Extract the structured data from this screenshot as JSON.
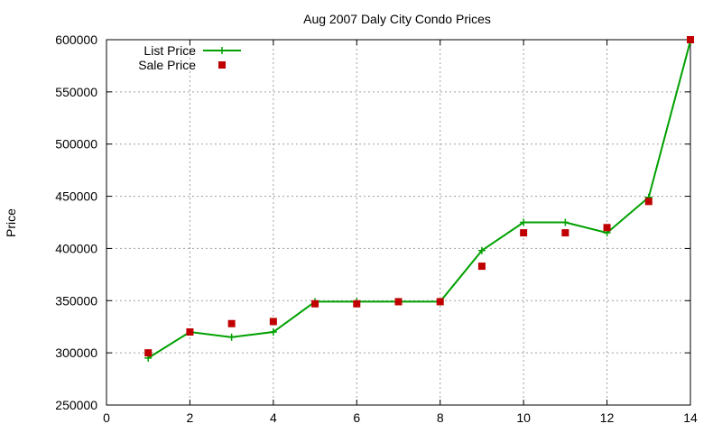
{
  "chart_data": {
    "type": "line",
    "title": "Aug 2007 Daly City Condo Prices",
    "xlabel": "",
    "ylabel": "Price",
    "xlim": [
      0,
      14
    ],
    "ylim": [
      250000,
      600000
    ],
    "x_ticks": [
      0,
      2,
      4,
      6,
      8,
      10,
      12,
      14
    ],
    "y_ticks": [
      250000,
      300000,
      350000,
      400000,
      450000,
      500000,
      550000,
      600000
    ],
    "grid": true,
    "legend_position": "top-left",
    "series": [
      {
        "name": "List Price",
        "kind": "line+cross",
        "color": "#00a000",
        "x": [
          1,
          2,
          3,
          4,
          5,
          6,
          7,
          8,
          9,
          10,
          11,
          12,
          13,
          14
        ],
        "values": [
          295000,
          320000,
          315000,
          320000,
          349000,
          349000,
          349000,
          349000,
          398000,
          425000,
          425000,
          415000,
          449000,
          599000
        ]
      },
      {
        "name": "Sale Price",
        "kind": "square",
        "color": "#c00000",
        "x": [
          1,
          2,
          3,
          4,
          5,
          6,
          7,
          8,
          9,
          10,
          11,
          12,
          13,
          14
        ],
        "values": [
          300000,
          320000,
          328000,
          330000,
          347000,
          347000,
          349000,
          349000,
          383000,
          415000,
          415000,
          420000,
          445000,
          600000
        ]
      }
    ]
  }
}
